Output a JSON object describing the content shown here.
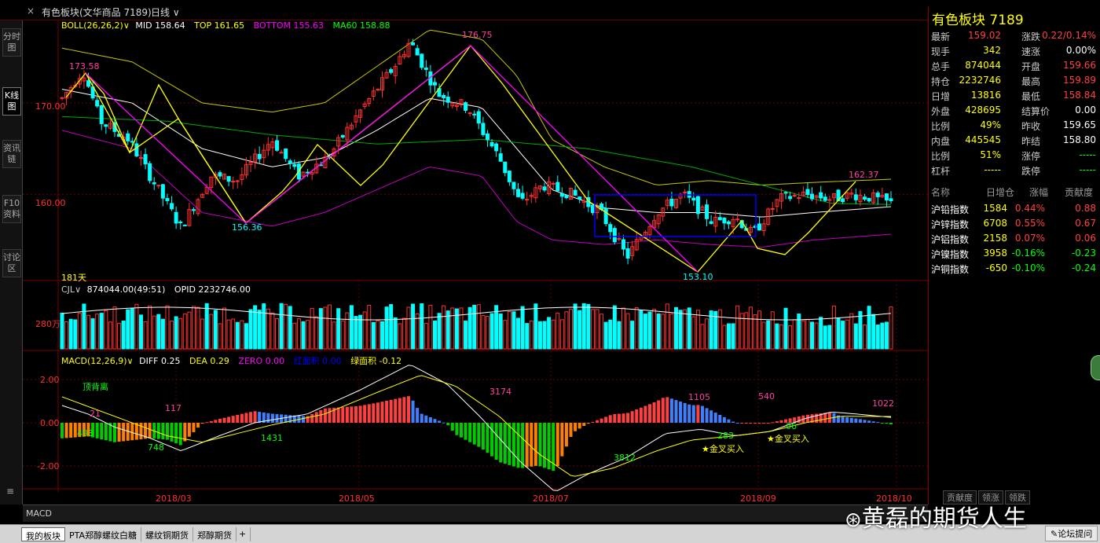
{
  "titlebar": {
    "title": "有色板块(文华商品 7189)",
    "period": "日线",
    "close_mark": "×"
  },
  "left_tabs": [
    {
      "label": "分时图",
      "active": false
    },
    {
      "label": "K线图",
      "active": true
    },
    {
      "label": "资讯链",
      "active": false
    },
    {
      "label": "F10资料",
      "active": false
    },
    {
      "label": "讨论区",
      "active": false
    }
  ],
  "main": {
    "boll_name": "BOLL(26,26,2)",
    "boll_mid": "MID 158.64",
    "boll_top": "TOP 161.65",
    "boll_bottom": "BOTTOM 155.63",
    "ma60": "MA60 158.88",
    "y_labels": [
      "170.00",
      "160.00"
    ],
    "days_label": "181天",
    "annotations": {
      "p173": "173.58",
      "p176": "176.75",
      "p156": "156.36",
      "p153": "153.10",
      "p162": "162.37"
    }
  },
  "volume": {
    "name": "CJL",
    "values": "874044.00(49:51)",
    "opid": "OPID 2232746.00",
    "y_label": "280万"
  },
  "macd": {
    "name": "MACD(12,26,9)",
    "diff": "DIFF 0.25",
    "dea": "DEA 0.29",
    "zero": "ZERO 0.00",
    "red_area": "红面积 0.00",
    "green_area": "绿面积 -0.12",
    "y_labels": [
      "2.00",
      "0.00",
      "-2.00"
    ],
    "annotations": {
      "divergence": "顶背离",
      "a21": "21",
      "a117": "117",
      "a493": "493",
      "a748": "748",
      "a1431": "1431",
      "a3174": "3174",
      "a3812": "3812",
      "a1105": "1105",
      "a540": "540",
      "a283": "283",
      "a06": "06",
      "a1022": "1022",
      "golden1": "金叉买入",
      "golden2": "金叉买入"
    }
  },
  "xaxis": {
    "labels": [
      "2018/03",
      "2018/05",
      "2018/07",
      "2018/09",
      "2018/10"
    ]
  },
  "quote": {
    "title": "有色板块",
    "code": "7189",
    "rows": [
      [
        "最新",
        "159.02",
        "涨跌",
        "0.22/0.14%"
      ],
      [
        "现手",
        "342",
        "速涨",
        "0.00%"
      ],
      [
        "总手",
        "874044",
        "开盘",
        "159.66"
      ],
      [
        "持仓",
        "2232746",
        "最高",
        "159.89"
      ],
      [
        "日增",
        "13816",
        "最低",
        "158.84"
      ],
      [
        "外盘",
        "428695",
        "结算价",
        "0.00"
      ],
      [
        "比例",
        "49%",
        "昨收",
        "159.65"
      ],
      [
        "内盘",
        "445545",
        "昨结",
        "158.80"
      ],
      [
        "比例",
        "51%",
        "涨停",
        "-----"
      ],
      [
        "杠杆",
        "-----",
        "跌停",
        "-----"
      ]
    ],
    "list_header": [
      "名称",
      "日增仓",
      "涨幅",
      "贡献度"
    ],
    "list": [
      [
        "沪铅指数",
        "1584",
        "0.44%",
        "0.88"
      ],
      [
        "沪锌指数",
        "6708",
        "0.55%",
        "0.67"
      ],
      [
        "沪铝指数",
        "2158",
        "0.07%",
        "0.06"
      ],
      [
        "沪镍指数",
        "3958",
        "-0.16%",
        "-0.23"
      ],
      [
        "沪铜指数",
        "-650",
        "-0.10%",
        "-0.24"
      ]
    ],
    "bottom_tabs": [
      "贡献度",
      "领涨",
      "领跌"
    ]
  },
  "indicator_bar": {
    "label": "MACD"
  },
  "bottom_tabs": [
    {
      "label": "我的板块",
      "active": true
    },
    {
      "label": "PTA郑醇螺纹白糖",
      "active": false
    },
    {
      "label": "螺纹铜期货",
      "active": false
    },
    {
      "label": "郑醇期货",
      "active": false
    },
    {
      "label": "+",
      "active": false
    }
  ],
  "forum": "论坛提问",
  "watermark": "黄磊的期货人生",
  "colors": {
    "up": "#ff3030",
    "down": "#00ffff",
    "macd_up": "#ff4040",
    "macd_up_fall": "#4080ff",
    "macd_down": "#00cc00",
    "macd_down_rise": "#ff8000",
    "mid": "#ffffff",
    "top": "#c8c800",
    "bottom": "#c000c0",
    "ma60": "#00aa00",
    "trend_down": "#ff00ff",
    "trend_up": "#ffff00",
    "box": "#0000ff"
  },
  "chart_data": {
    "type": "candlestick",
    "ylim": [
      151.5,
      178.0
    ],
    "x_start": "2018/02",
    "x_end": "2018/10",
    "price_anchors": [
      [
        0,
        170.5
      ],
      [
        12,
        173.58
      ],
      [
        22,
        168
      ],
      [
        38,
        166
      ],
      [
        55,
        160.5
      ],
      [
        68,
        156.36
      ],
      [
        85,
        162
      ],
      [
        100,
        161.5
      ],
      [
        120,
        166
      ],
      [
        135,
        162
      ],
      [
        152,
        164
      ],
      [
        170,
        169
      ],
      [
        190,
        174
      ],
      [
        199,
        176.75
      ],
      [
        215,
        171
      ],
      [
        232,
        169.5
      ],
      [
        250,
        164
      ],
      [
        262,
        159
      ],
      [
        275,
        161
      ],
      [
        292,
        160
      ],
      [
        308,
        158
      ],
      [
        323,
        153.1
      ],
      [
        340,
        158
      ],
      [
        355,
        160
      ],
      [
        372,
        157
      ],
      [
        385,
        157.5
      ],
      [
        395,
        155.6
      ],
      [
        410,
        159.5
      ],
      [
        425,
        160
      ],
      [
        440,
        159.5
      ],
      [
        452,
        160
      ],
      [
        464,
        159.6
      ],
      [
        474,
        159.02
      ]
    ],
    "macd_diff_anchors": [
      [
        0,
        0.8
      ],
      [
        15,
        0.4
      ],
      [
        30,
        -0.2
      ],
      [
        50,
        -0.7
      ],
      [
        68,
        -1.3
      ],
      [
        90,
        -0.6
      ],
      [
        110,
        0.0
      ],
      [
        140,
        0.4
      ],
      [
        170,
        1.5
      ],
      [
        199,
        2.7
      ],
      [
        220,
        1.8
      ],
      [
        240,
        0.2
      ],
      [
        262,
        -1.8
      ],
      [
        282,
        -3.2
      ],
      [
        300,
        -2.4
      ],
      [
        323,
        -1.6
      ],
      [
        345,
        -0.5
      ],
      [
        365,
        -0.3
      ],
      [
        385,
        -0.6
      ],
      [
        405,
        -0.4
      ],
      [
        425,
        0.2
      ],
      [
        440,
        0.5
      ],
      [
        455,
        0.4
      ],
      [
        474,
        0.25
      ]
    ],
    "macd_dea_anchors": [
      [
        0,
        1.2
      ],
      [
        20,
        0.6
      ],
      [
        40,
        0.0
      ],
      [
        60,
        -0.6
      ],
      [
        80,
        -0.9
      ],
      [
        100,
        -0.5
      ],
      [
        120,
        -0.1
      ],
      [
        150,
        0.4
      ],
      [
        180,
        1.4
      ],
      [
        205,
        2.2
      ],
      [
        225,
        1.7
      ],
      [
        250,
        0.3
      ],
      [
        272,
        -1.4
      ],
      [
        292,
        -2.5
      ],
      [
        315,
        -2.1
      ],
      [
        340,
        -1.3
      ],
      [
        360,
        -0.8
      ],
      [
        385,
        -0.6
      ],
      [
        405,
        -0.4
      ],
      [
        425,
        0.0
      ],
      [
        445,
        0.3
      ],
      [
        474,
        0.29
      ]
    ],
    "boll_top_anchors": [
      [
        0,
        176
      ],
      [
        40,
        174.5
      ],
      [
        80,
        170
      ],
      [
        120,
        169
      ],
      [
        150,
        170
      ],
      [
        180,
        174
      ],
      [
        210,
        178
      ],
      [
        240,
        177
      ],
      [
        260,
        173
      ],
      [
        280,
        166
      ],
      [
        310,
        163
      ],
      [
        340,
        161
      ],
      [
        370,
        161.5
      ],
      [
        400,
        161
      ],
      [
        430,
        161.3
      ],
      [
        474,
        161.65
      ]
    ],
    "boll_bottom_anchors": [
      [
        0,
        167
      ],
      [
        40,
        165
      ],
      [
        80,
        158
      ],
      [
        120,
        156.5
      ],
      [
        150,
        158
      ],
      [
        180,
        160.5
      ],
      [
        210,
        163
      ],
      [
        240,
        162
      ],
      [
        260,
        157
      ],
      [
        280,
        155
      ],
      [
        310,
        154.5
      ],
      [
        340,
        155
      ],
      [
        370,
        154.5
      ],
      [
        400,
        154.2
      ],
      [
        430,
        155
      ],
      [
        474,
        155.63
      ]
    ],
    "boll_mid_anchors": [
      [
        0,
        171.5
      ],
      [
        40,
        170
      ],
      [
        80,
        165
      ],
      [
        120,
        163
      ],
      [
        150,
        164
      ],
      [
        180,
        167
      ],
      [
        210,
        170.5
      ],
      [
        240,
        169.5
      ],
      [
        260,
        165
      ],
      [
        280,
        160.5
      ],
      [
        310,
        158.5
      ],
      [
        340,
        158
      ],
      [
        370,
        158
      ],
      [
        400,
        157.5
      ],
      [
        430,
        158
      ],
      [
        474,
        158.64
      ]
    ],
    "ma60_anchors": [
      [
        0,
        168.5
      ],
      [
        60,
        168
      ],
      [
        120,
        166.5
      ],
      [
        180,
        165.5
      ],
      [
        240,
        166
      ],
      [
        300,
        165
      ],
      [
        360,
        163
      ],
      [
        400,
        161
      ],
      [
        440,
        159
      ],
      [
        474,
        158.88
      ]
    ]
  }
}
